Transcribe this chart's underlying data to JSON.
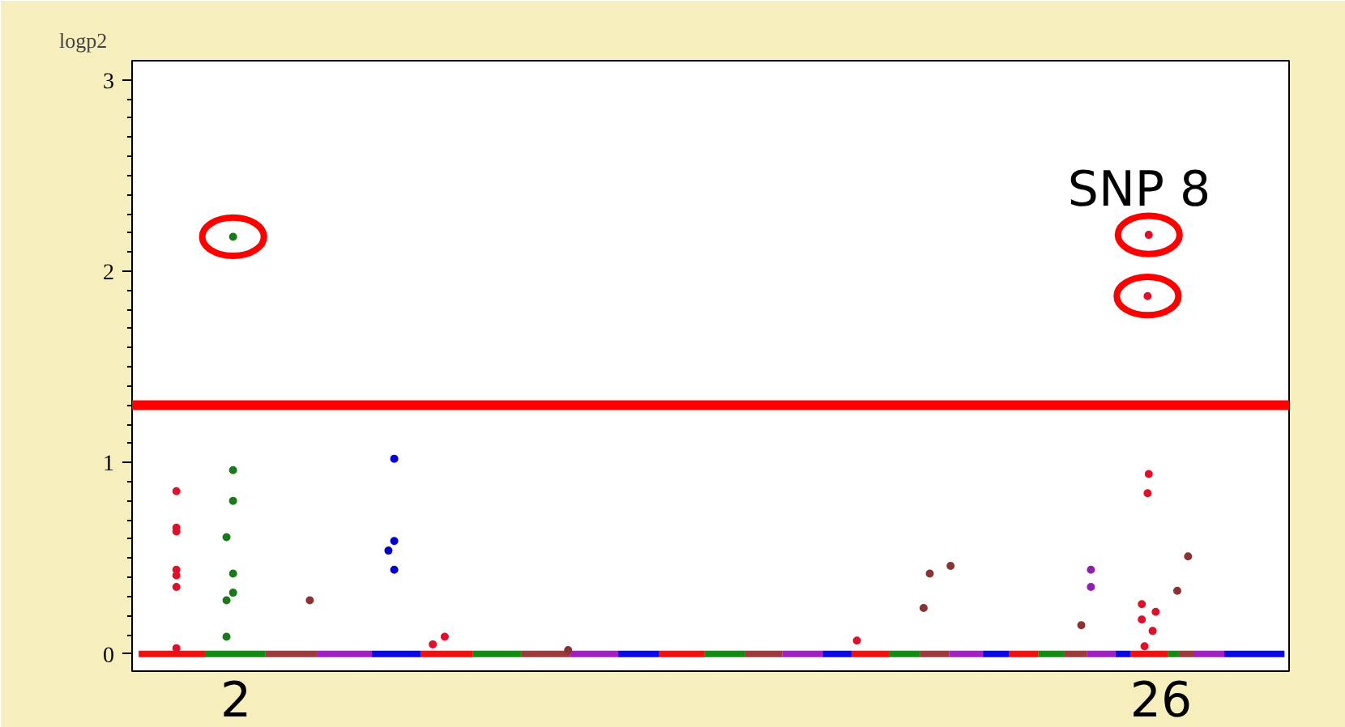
{
  "chart_data": {
    "type": "scatter",
    "ylabel": "logp2",
    "xlim": [
      -0.69,
      29.32
    ],
    "xticks": [
      {
        "value": 2,
        "label": "2"
      },
      {
        "value": 26,
        "label": "26"
      }
    ],
    "ylim": [
      -0.09,
      3.1
    ],
    "yticks": [
      0,
      1,
      2,
      3
    ],
    "grid": false,
    "marker": "circle",
    "series": [
      {
        "type": "line",
        "marker": "none",
        "color": "#ee1111",
        "x": [
          -0.52,
          1.2,
          4.0,
          6.79,
          8.14,
          10.5,
          12.97,
          14.15,
          16.0,
          17.97,
          18.94,
          20.5,
          22.05,
          22.81,
          24.0,
          25.2,
          26.17
        ],
        "values": [
          0,
          0,
          null,
          0,
          0,
          null,
          0,
          0,
          null,
          0,
          0,
          null,
          0,
          0,
          null,
          0,
          0
        ]
      },
      {
        "type": "line",
        "marker": "none",
        "color": "#138a13",
        "x": [
          1.2,
          2.76,
          6.0,
          8.14,
          9.4,
          12.0,
          14.15,
          15.2,
          17.0,
          18.94,
          19.74,
          21.0,
          22.81,
          23.48,
          25.0,
          26.17,
          26.46
        ],
        "values": [
          0,
          0,
          null,
          0,
          0,
          null,
          0,
          0,
          null,
          0,
          0,
          null,
          0,
          0,
          null,
          0,
          0
        ]
      },
      {
        "type": "line",
        "marker": "none",
        "color": "#9b3b3b",
        "x": [
          2.76,
          4.1,
          7.0,
          9.4,
          10.66,
          13.0,
          15.2,
          16.17,
          17.5,
          19.74,
          20.5,
          22.0,
          23.48,
          24.07,
          25.5,
          26.46,
          26.84
        ],
        "values": [
          0,
          0,
          null,
          0,
          0,
          null,
          0,
          0,
          null,
          0,
          0,
          null,
          0,
          0,
          null,
          0,
          0
        ]
      },
      {
        "type": "line",
        "marker": "none",
        "color": "#a020c0",
        "x": [
          4.1,
          5.53,
          8.0,
          10.66,
          11.92,
          14.0,
          16.17,
          17.22,
          19.0,
          20.5,
          21.38,
          23.0,
          24.07,
          24.82,
          26.0,
          26.84,
          27.64
        ],
        "values": [
          0,
          0,
          null,
          0,
          0,
          null,
          0,
          0,
          null,
          0,
          0,
          null,
          0,
          0,
          null,
          0,
          0
        ]
      },
      {
        "type": "line",
        "marker": "none",
        "color": "#0a0ae0",
        "x": [
          5.53,
          6.79,
          9.0,
          11.92,
          12.97,
          15.0,
          17.22,
          17.97,
          19.5,
          21.38,
          22.05,
          23.5,
          24.82,
          25.2,
          27.0,
          27.64,
          29.2
        ],
        "values": [
          0,
          0,
          null,
          0,
          0,
          null,
          0,
          0,
          null,
          0,
          0,
          null,
          0,
          0,
          null,
          0,
          0
        ]
      },
      {
        "color": "#e0102a",
        "x": [
          0.46,
          0.46,
          0.46,
          0.46,
          0.46,
          0.46,
          0.46,
          7.11,
          7.42,
          18.11,
          25.68,
          25.65,
          25.68,
          25.65,
          25.5,
          25.5,
          25.86,
          25.78,
          25.57
        ],
        "values": [
          0.85,
          0.66,
          0.64,
          0.44,
          0.41,
          0.35,
          0.03,
          0.05,
          0.09,
          0.07,
          2.19,
          1.87,
          0.94,
          0.84,
          0.26,
          0.18,
          0.22,
          0.12,
          0.04
        ]
      },
      {
        "color": "#1a7a1a",
        "x": [
          1.93,
          1.93,
          1.93,
          1.76,
          1.93,
          1.93,
          1.76,
          1.76
        ],
        "values": [
          2.18,
          0.96,
          0.8,
          0.61,
          0.42,
          0.32,
          0.28,
          0.09
        ]
      },
      {
        "color": "#8b3333",
        "x": [
          3.92,
          10.62,
          19.84,
          20.0,
          20.54,
          23.93,
          26.42,
          26.7
        ],
        "values": [
          0.28,
          0.02,
          0.24,
          0.42,
          0.46,
          0.15,
          0.33,
          0.51
        ]
      },
      {
        "color": "#9020b0",
        "x": [
          24.18,
          24.18
        ],
        "values": [
          0.44,
          0.35
        ]
      },
      {
        "color": "#0000d0",
        "x": [
          6.11,
          6.11,
          5.96,
          6.11
        ],
        "values": [
          1.02,
          0.59,
          0.54,
          0.44
        ]
      }
    ],
    "ref_lines": [
      {
        "axis": "y",
        "value": 1.3,
        "color": "#ff0000"
      }
    ],
    "annotations": [
      {
        "text": "SNP 8",
        "x": 25.68,
        "y": 2.19
      }
    ]
  }
}
